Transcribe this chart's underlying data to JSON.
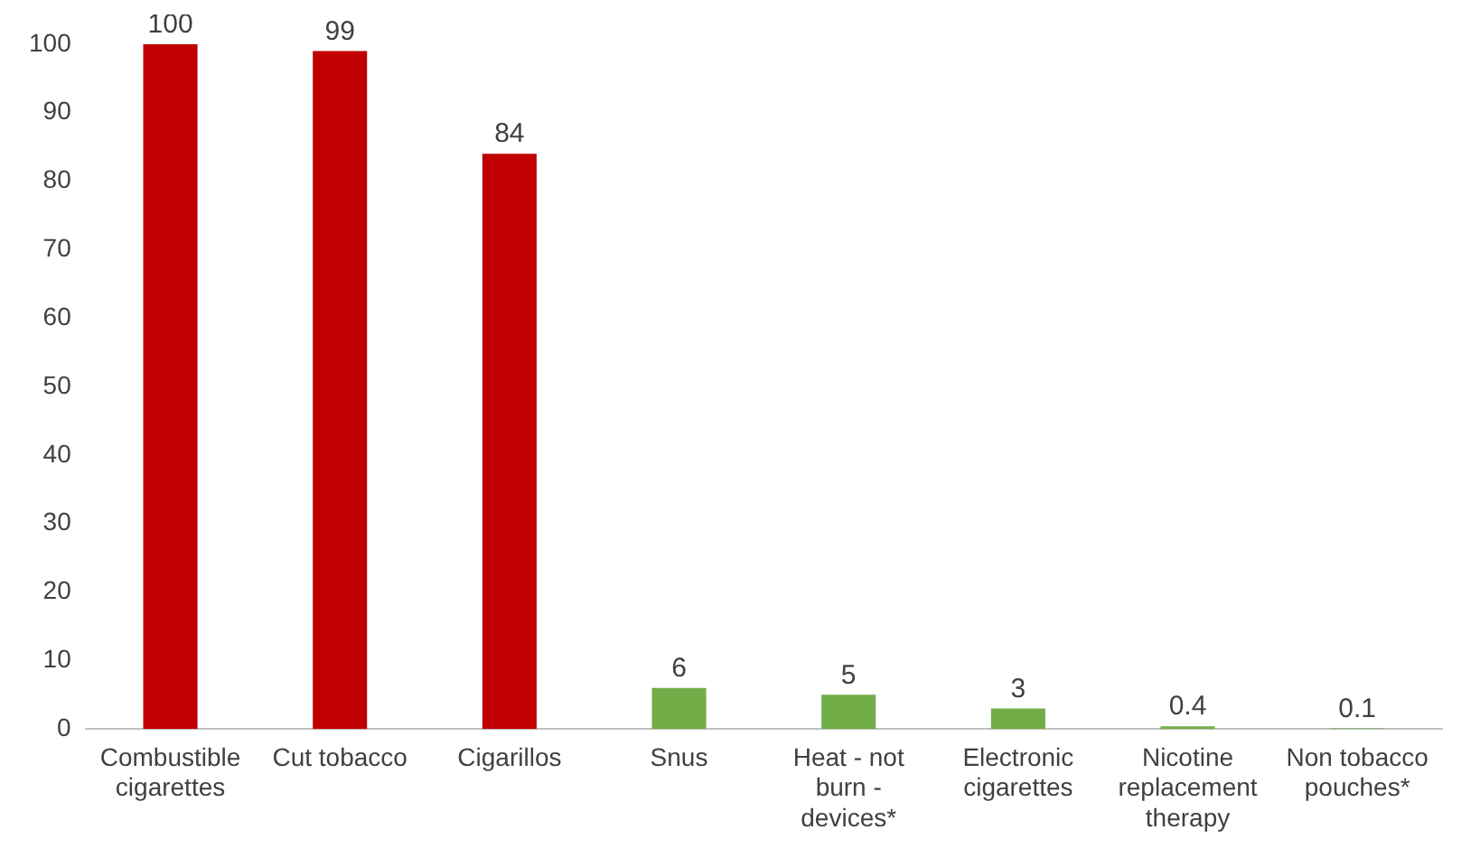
{
  "chart_data": {
    "type": "bar",
    "categories": [
      "Combustible cigarettes",
      "Cut tobacco",
      "Cigarillos",
      "Snus",
      "Heat - not burn - devices*",
      "Electronic cigarettes",
      "Nicotine replacement therapy",
      "Non tobacco pouches*"
    ],
    "values": [
      100,
      99,
      84,
      6,
      5,
      3,
      0.4,
      0.1
    ],
    "colors": [
      "#c00000",
      "#c00000",
      "#c00000",
      "#70ad47",
      "#70ad47",
      "#70ad47",
      "#70ad47",
      "#70ad47"
    ],
    "ylim": [
      0,
      100
    ],
    "yticks": [
      0,
      10,
      20,
      30,
      40,
      50,
      60,
      70,
      80,
      90,
      100
    ],
    "grid": false,
    "legend": false,
    "data_labels": true
  }
}
